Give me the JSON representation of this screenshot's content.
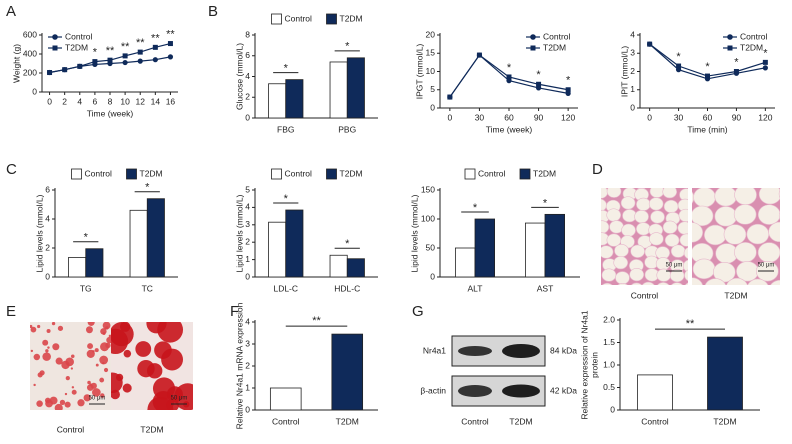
{
  "chart_data": [
    {
      "type": "line",
      "panel": "A",
      "ylabel": "Weight (g)",
      "xlabel": "Time (week)",
      "x": [
        0,
        2,
        4,
        6,
        8,
        10,
        12,
        14,
        16
      ],
      "xlim": [
        -1,
        17
      ],
      "xticks": [
        0,
        2,
        4,
        6,
        8,
        10,
        12,
        14,
        16
      ],
      "ylim": [
        0,
        600
      ],
      "yticks": [
        0,
        200,
        400,
        600
      ],
      "legend": "upper left",
      "series": [
        {
          "name": "Control",
          "color": "#0f2a5a",
          "marker": "circle",
          "values": [
            205,
            235,
            270,
            290,
            300,
            310,
            325,
            340,
            370
          ]
        },
        {
          "name": "T2DM",
          "color": "#0f2a5a",
          "marker": "square",
          "values": [
            205,
            235,
            270,
            320,
            335,
            380,
            420,
            470,
            510
          ]
        }
      ],
      "annotations": [
        {
          "x": 6,
          "text": "*"
        },
        {
          "x": 8,
          "text": "**"
        },
        {
          "x": 10,
          "text": "**"
        },
        {
          "x": 12,
          "text": "**"
        },
        {
          "x": 14,
          "text": "**"
        },
        {
          "x": 16,
          "text": "**"
        }
      ]
    },
    {
      "type": "bar",
      "panel": "B",
      "ylabel": "Glucose (mmol/L)",
      "categories": [
        "FBG",
        "PBG"
      ],
      "ylim": [
        0,
        8
      ],
      "yticks": [
        0,
        2,
        4,
        6,
        8
      ],
      "legend": "top",
      "series": [
        {
          "name": "Control",
          "color": "#ffffff",
          "values": [
            3.3,
            5.4
          ]
        },
        {
          "name": "T2DM",
          "color": "#0f2a5a",
          "values": [
            3.7,
            5.8
          ]
        }
      ],
      "significance": [
        "*",
        "*"
      ]
    },
    {
      "type": "line",
      "ylabel": "IPGT (mmol/L)",
      "xlabel": "Time (week)",
      "x": [
        0,
        30,
        60,
        90,
        120
      ],
      "xlim": [
        -10,
        130
      ],
      "xticks": [
        0,
        30,
        60,
        90,
        120
      ],
      "ylim": [
        0,
        20
      ],
      "yticks": [
        0,
        5,
        10,
        15,
        20
      ],
      "legend": "upper right",
      "series": [
        {
          "name": "Control",
          "color": "#0f2a5a",
          "marker": "circle",
          "values": [
            3,
            14.5,
            7.5,
            5.5,
            4
          ]
        },
        {
          "name": "T2DM",
          "color": "#0f2a5a",
          "marker": "square",
          "values": [
            3,
            14.5,
            8.5,
            6.5,
            5
          ]
        }
      ],
      "annotations": [
        {
          "x": 60,
          "text": "*"
        },
        {
          "x": 90,
          "text": "*"
        },
        {
          "x": 120,
          "text": "*"
        }
      ]
    },
    {
      "type": "line",
      "ylabel": "IPIT (mmol/L)",
      "xlabel": "Time (min)",
      "x": [
        0,
        30,
        60,
        90,
        120
      ],
      "xlim": [
        -10,
        130
      ],
      "xticks": [
        0,
        30,
        60,
        90,
        120
      ],
      "ylim": [
        0,
        4
      ],
      "yticks": [
        0,
        1,
        2,
        3,
        4
      ],
      "legend": "upper right",
      "series": [
        {
          "name": "Control",
          "color": "#0f2a5a",
          "marker": "circle",
          "values": [
            3.5,
            2.1,
            1.6,
            1.9,
            2.2
          ]
        },
        {
          "name": "T2DM",
          "color": "#0f2a5a",
          "marker": "square",
          "values": [
            3.5,
            2.3,
            1.75,
            2.0,
            2.5
          ]
        }
      ],
      "annotations": [
        {
          "x": 30,
          "text": "*"
        },
        {
          "x": 60,
          "text": "*"
        },
        {
          "x": 90,
          "text": "*"
        },
        {
          "x": 120,
          "text": "*"
        }
      ]
    },
    {
      "type": "bar",
      "panel": "C",
      "ylabel": "Lipid levels (mmol/L)",
      "categories": [
        "TG",
        "TC"
      ],
      "ylim": [
        0,
        6
      ],
      "yticks": [
        0,
        2,
        4,
        6
      ],
      "legend": "top",
      "series": [
        {
          "name": "Control",
          "color": "#ffffff",
          "values": [
            1.35,
            4.6
          ]
        },
        {
          "name": "T2DM",
          "color": "#0f2a5a",
          "values": [
            1.95,
            5.4
          ]
        }
      ],
      "significance": [
        "*",
        "*"
      ]
    },
    {
      "type": "bar",
      "ylabel": "Lipid levels (mmol/L)",
      "categories": [
        "LDL-C",
        "HDL-C"
      ],
      "ylim": [
        0,
        5
      ],
      "yticks": [
        0,
        1,
        2,
        3,
        4,
        5
      ],
      "legend": "top",
      "series": [
        {
          "name": "Control",
          "color": "#ffffff",
          "values": [
            3.15,
            1.25
          ]
        },
        {
          "name": "T2DM",
          "color": "#0f2a5a",
          "values": [
            3.85,
            1.05
          ]
        }
      ],
      "significance": [
        "*",
        "*"
      ]
    },
    {
      "type": "bar",
      "ylabel": "Lipid levels (mmol/L)",
      "categories": [
        "ALT",
        "AST"
      ],
      "ylim": [
        0,
        150
      ],
      "yticks": [
        0,
        50,
        100,
        150
      ],
      "legend": "top",
      "series": [
        {
          "name": "Control",
          "color": "#ffffff",
          "values": [
            50,
            93
          ]
        },
        {
          "name": "T2DM",
          "color": "#0f2a5a",
          "values": [
            100,
            108
          ]
        }
      ],
      "significance": [
        "*",
        "*"
      ]
    },
    {
      "type": "bar",
      "panel": "F",
      "ylabel": [
        "Relative Nr4a1 mRNA expression"
      ],
      "categories": [
        "Control",
        "T2DM"
      ],
      "values": [
        1,
        3.45
      ],
      "colors": [
        "#ffffff",
        "#0f2a5a"
      ],
      "ylim": [
        0,
        4
      ],
      "yticks": [
        0,
        1,
        2,
        3,
        4
      ],
      "significance": "**"
    },
    {
      "type": "bar",
      "panel": "G",
      "ylabel": [
        "Relative expression of Nr4a1",
        "protein"
      ],
      "categories": [
        "Control",
        "T2DM"
      ],
      "values": [
        0.78,
        1.62
      ],
      "colors": [
        "#ffffff",
        "#0f2a5a"
      ],
      "ylim": [
        0,
        2
      ],
      "yticks": [
        0,
        0.5,
        {
          "value": 1,
          "label": "1.0"
        },
        1.5,
        {
          "value": 2,
          "label": "2.0"
        }
      ],
      "significance": "**"
    }
  ],
  "histology": {
    "panel": "D",
    "captions": [
      "Control",
      "T2DM"
    ],
    "scale_bar": "50 μm"
  },
  "oil_red": {
    "panel": "E",
    "captions": [
      "Control",
      "T2DM"
    ],
    "scale_bar": "50 μm"
  },
  "western_blot": {
    "bands": [
      {
        "name": "Nr4a1",
        "size": "84 kDa"
      },
      {
        "name": "β-actin",
        "size": "42 kDa"
      }
    ],
    "captions": [
      "Control",
      "T2DM"
    ]
  }
}
